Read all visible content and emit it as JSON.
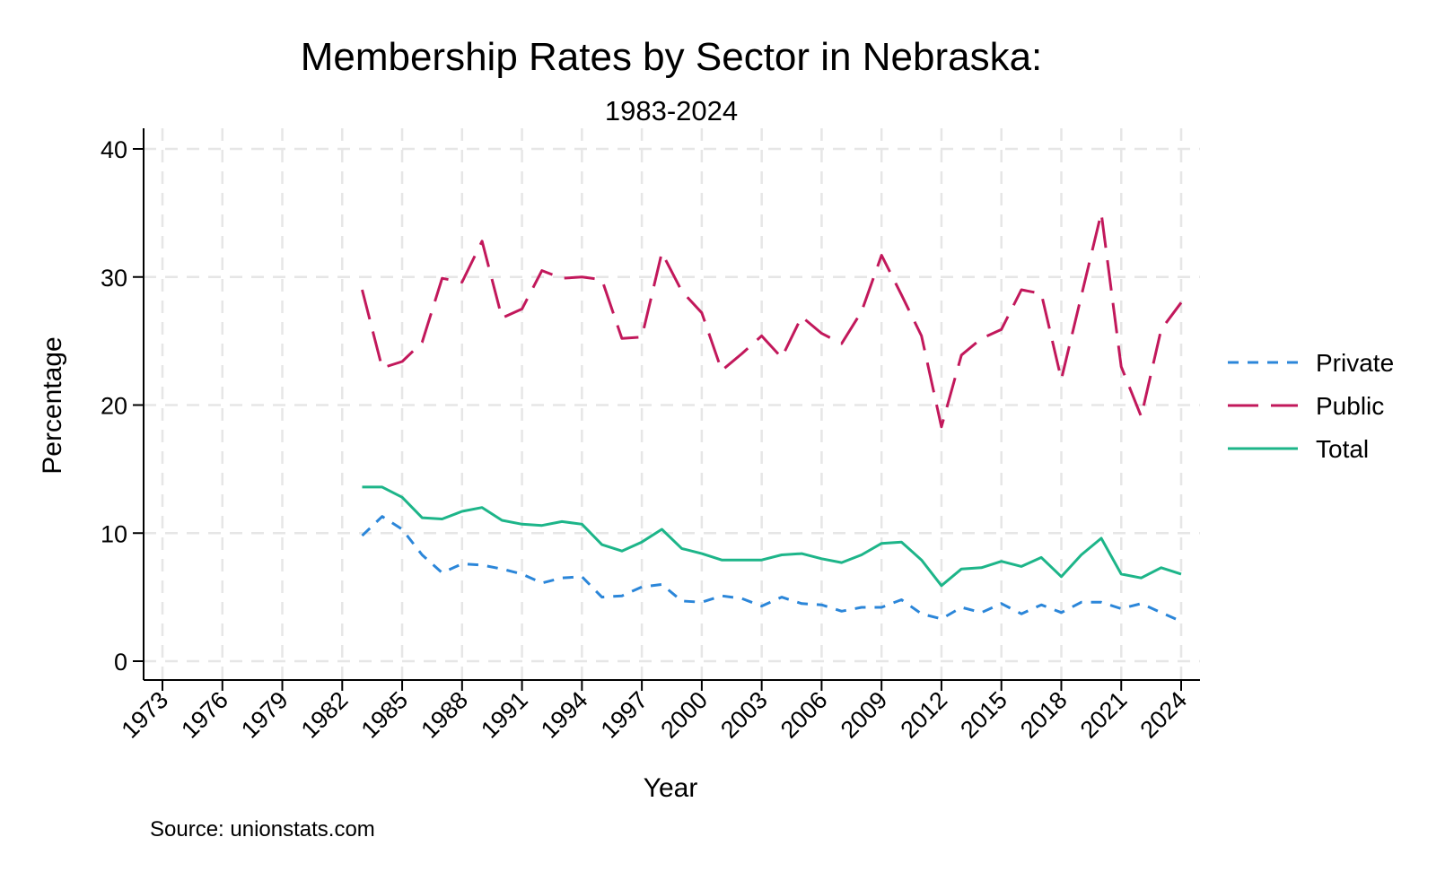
{
  "chart_data": {
    "type": "line",
    "title": "Membership Rates by Sector in Nebraska:",
    "subtitle": "1983-2024",
    "xlabel": "Year",
    "ylabel": "Percentage",
    "source": "Source: unionstats.com",
    "xlim": [
      1973,
      2024
    ],
    "ylim": [
      0,
      40
    ],
    "x_ticks": [
      "1973",
      "1976",
      "1979",
      "1982",
      "1985",
      "1988",
      "1991",
      "1994",
      "1997",
      "2000",
      "2003",
      "2006",
      "2009",
      "2012",
      "2015",
      "2018",
      "2021",
      "2024"
    ],
    "y_ticks": [
      "0",
      "10",
      "20",
      "30",
      "40"
    ],
    "grid": true,
    "legend_position": "right",
    "x": [
      1983,
      1984,
      1985,
      1986,
      1987,
      1988,
      1989,
      1990,
      1991,
      1992,
      1993,
      1994,
      1995,
      1996,
      1997,
      1998,
      1999,
      2000,
      2001,
      2002,
      2003,
      2004,
      2005,
      2006,
      2007,
      2008,
      2009,
      2010,
      2011,
      2012,
      2013,
      2014,
      2015,
      2016,
      2017,
      2018,
      2019,
      2020,
      2021,
      2022,
      2023,
      2024
    ],
    "series": [
      {
        "name": "Private",
        "color": "#2b86d9",
        "dash": "dashed",
        "values": [
          9.8,
          11.3,
          10.3,
          8.3,
          6.9,
          7.6,
          7.5,
          7.2,
          6.8,
          6.1,
          6.5,
          6.6,
          5.0,
          5.1,
          5.8,
          6.0,
          4.7,
          4.6,
          5.1,
          4.9,
          4.3,
          5.0,
          4.5,
          4.4,
          3.9,
          4.2,
          4.2,
          4.8,
          3.7,
          3.3,
          4.2,
          3.8,
          4.5,
          3.7,
          4.4,
          3.8,
          4.6,
          4.6,
          4.1,
          4.5,
          3.8,
          3.1
        ]
      },
      {
        "name": "Public",
        "color": "#c2185b",
        "dash": "longdash",
        "values": [
          29.0,
          22.9,
          23.4,
          24.9,
          29.9,
          29.6,
          32.8,
          26.8,
          27.5,
          30.5,
          29.9,
          30.0,
          29.8,
          25.2,
          25.3,
          31.9,
          28.9,
          27.2,
          22.7,
          24.0,
          25.4,
          23.7,
          26.9,
          25.6,
          24.8,
          27.3,
          31.7,
          28.6,
          25.4,
          18.3,
          23.9,
          25.2,
          25.9,
          29.0,
          28.7,
          22.0,
          28.5,
          35.0,
          23.0,
          19.1,
          25.9,
          28.0
        ]
      },
      {
        "name": "Total",
        "color": "#1db589",
        "dash": "solid",
        "values": [
          13.6,
          13.6,
          12.8,
          11.2,
          11.1,
          11.7,
          12.0,
          11.0,
          10.7,
          10.6,
          10.9,
          10.7,
          9.1,
          8.6,
          9.3,
          10.3,
          8.8,
          8.4,
          7.9,
          7.9,
          7.9,
          8.3,
          8.4,
          8.0,
          7.7,
          8.3,
          9.2,
          9.3,
          7.9,
          5.9,
          7.2,
          7.3,
          7.8,
          7.4,
          8.1,
          6.6,
          8.3,
          9.6,
          6.8,
          6.5,
          7.3,
          6.8
        ]
      }
    ]
  }
}
